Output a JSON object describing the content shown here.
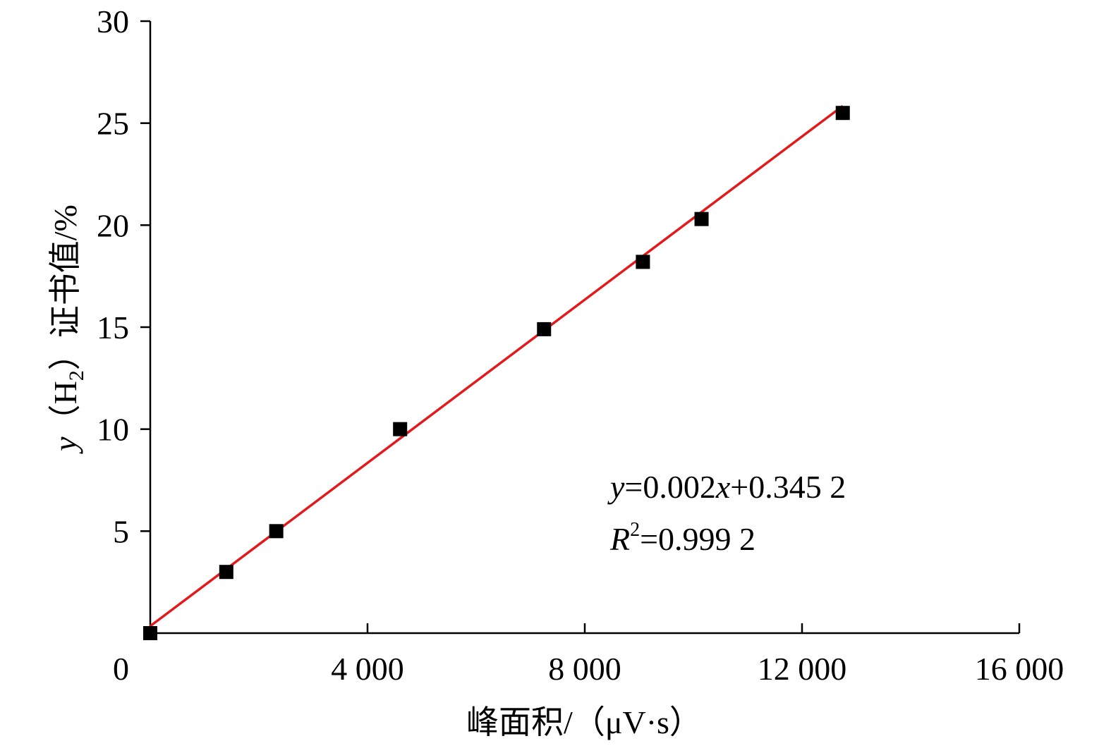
{
  "chart_data": {
    "type": "scatter",
    "title": "",
    "xlabel": "峰面积/（μV·s）",
    "ylabel_parts": {
      "var": "y",
      "open": "（",
      "species": "H",
      "sub": "2",
      "close": "）",
      "rest": "证书值/%"
    },
    "xlim": [
      0,
      16000
    ],
    "ylim": [
      0,
      30
    ],
    "xticks": [
      0,
      4000,
      8000,
      12000,
      16000
    ],
    "xtick_labels": [
      "0",
      "4 000",
      "8 000",
      "12 000",
      "16 000"
    ],
    "yticks": [
      5,
      10,
      15,
      20,
      25,
      30
    ],
    "ytick_labels": [
      "5",
      "10",
      "15",
      "20",
      "25",
      "30"
    ],
    "grid": false,
    "series": [
      {
        "marker": "square",
        "color": "#000000",
        "points": [
          {
            "x": 0,
            "y": 0
          },
          {
            "x": 1400,
            "y": 3.0
          },
          {
            "x": 2320,
            "y": 5.0
          },
          {
            "x": 4600,
            "y": 10.0
          },
          {
            "x": 7250,
            "y": 14.9
          },
          {
            "x": 9070,
            "y": 18.2
          },
          {
            "x": 10150,
            "y": 20.3
          },
          {
            "x": 12750,
            "y": 25.5
          }
        ]
      }
    ],
    "fit": {
      "slope": 0.002,
      "intercept": 0.3452,
      "x_range": [
        0,
        12750
      ],
      "color": "#e31a1c"
    },
    "annotations": {
      "eq_var": "y",
      "eq_mid": "=0.002",
      "eq_x": "x",
      "eq_end": "+0.345 2",
      "r2_var": "R",
      "r2_sup": "2",
      "r2_val": "=0.999 2"
    }
  }
}
